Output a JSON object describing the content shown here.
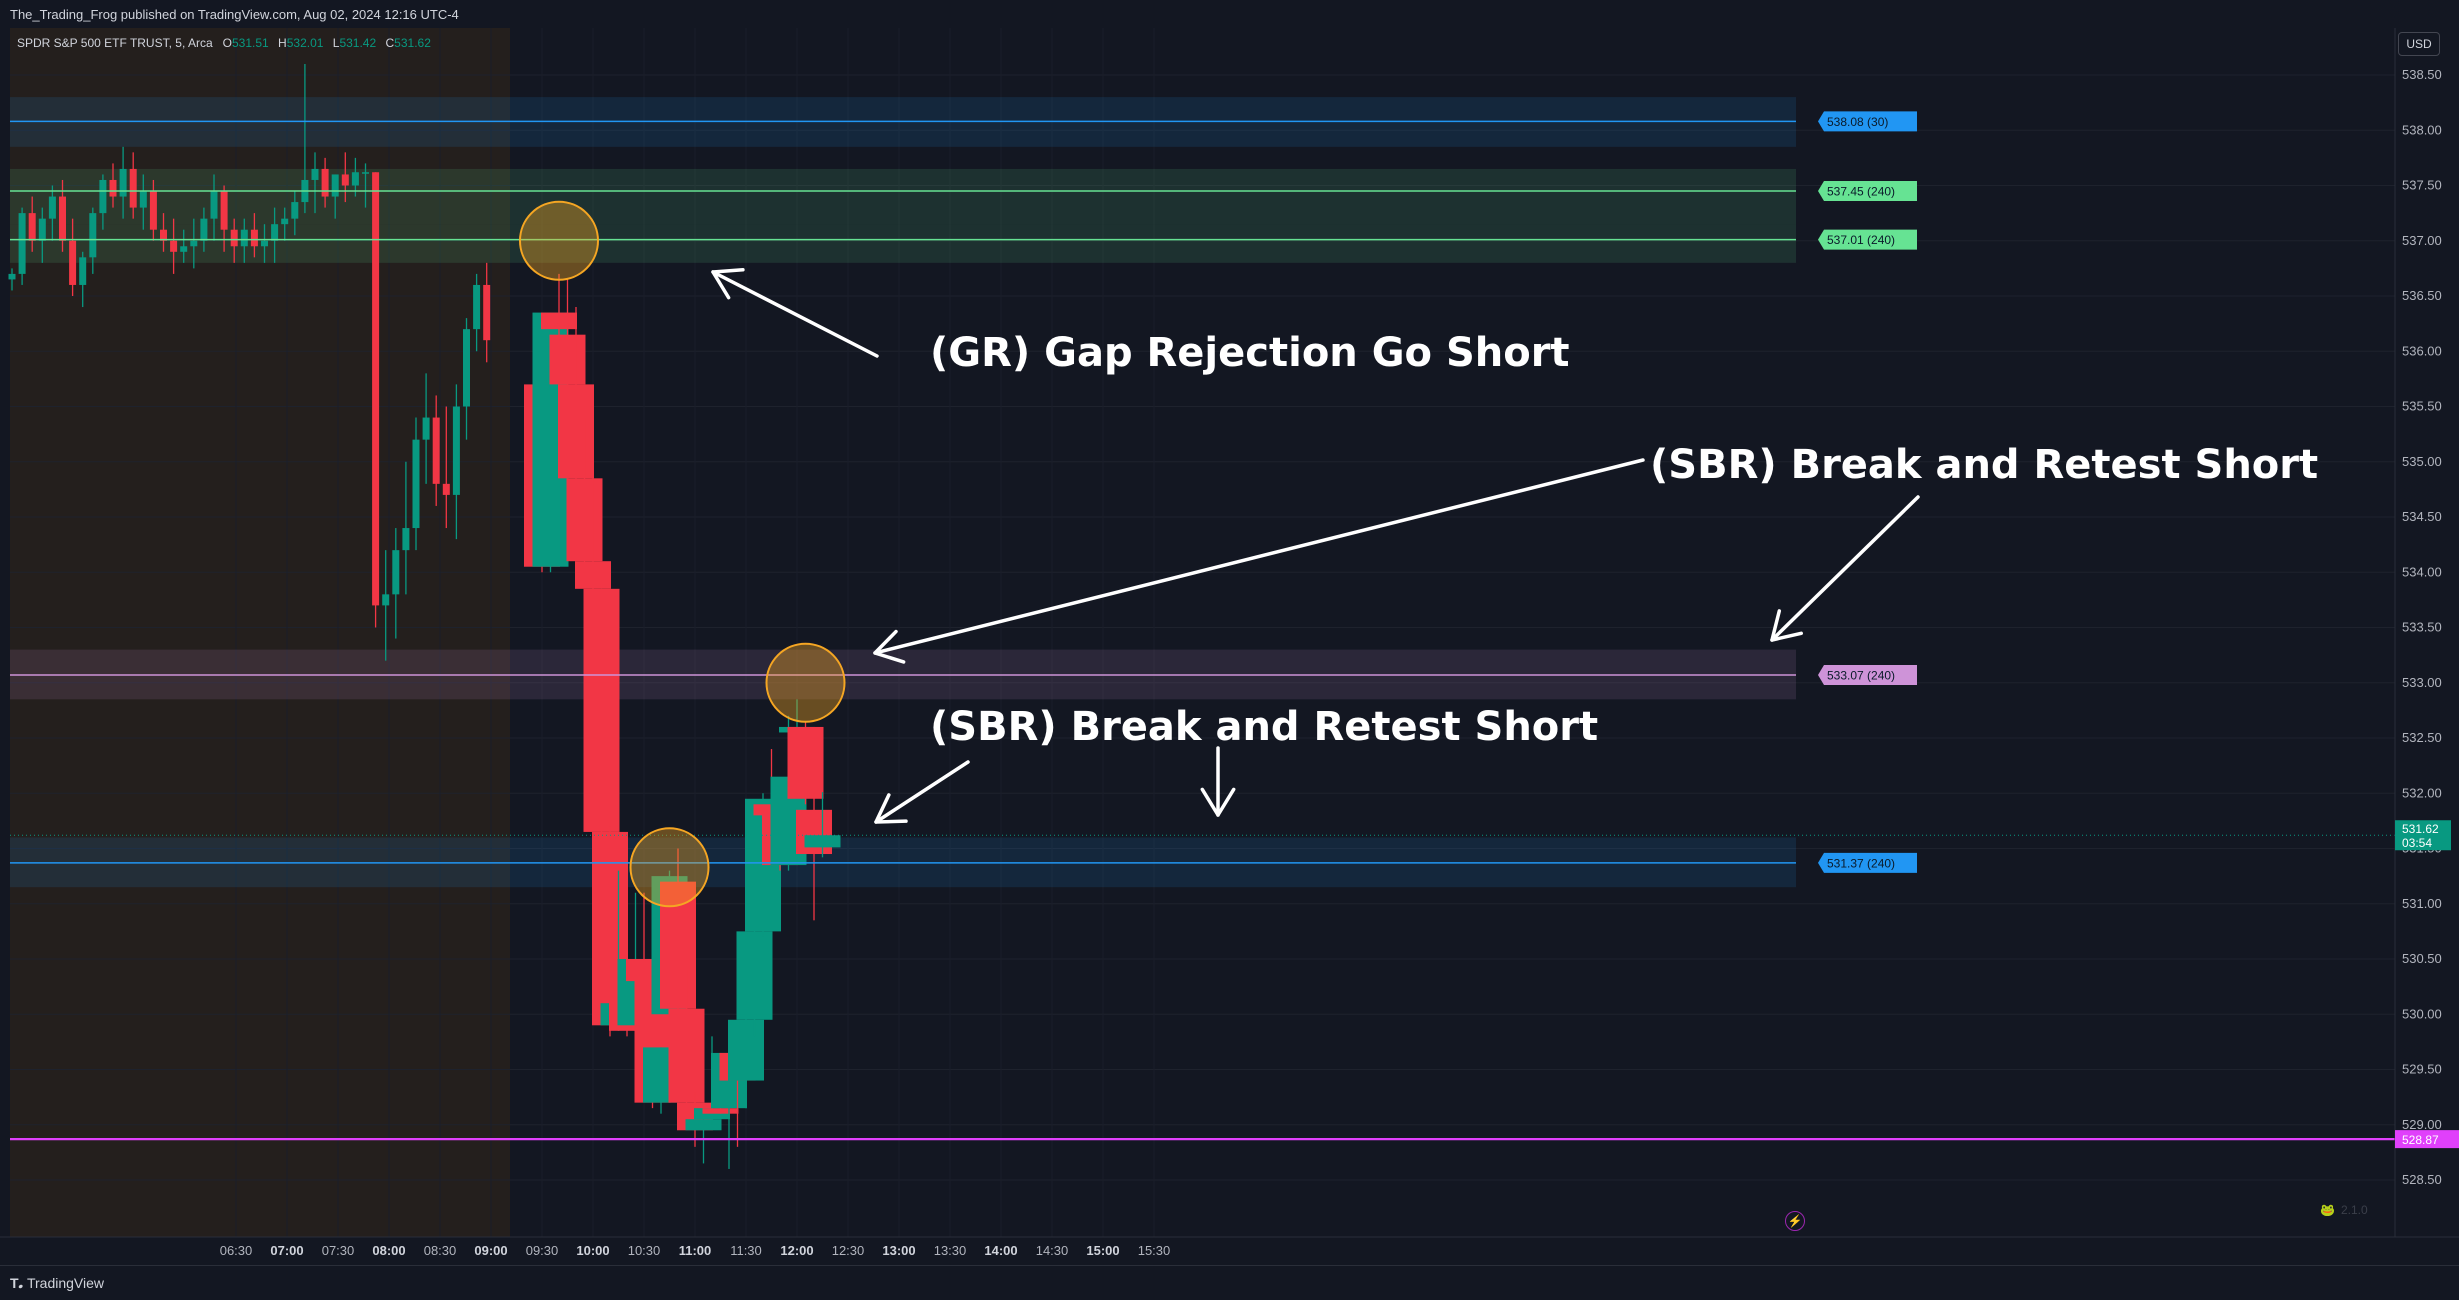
{
  "header": {
    "published_line": "The_Trading_Frog published on TradingView.com, Aug 02, 2024 12:16 UTC-4"
  },
  "symbol": {
    "name": "SPDR S&P 500 ETF TRUST, 5, Arca",
    "open_label": "O",
    "open": "531.51",
    "high_label": "H",
    "high": "532.01",
    "low_label": "L",
    "low": "531.42",
    "close_label": "C",
    "close": "531.62"
  },
  "currency": "USD",
  "footer": {
    "brand": "TradingView",
    "version": "2.1.0"
  },
  "colors": {
    "background": "#131722",
    "up": "#089981",
    "down": "#f23645",
    "blue_level": "#2196f3",
    "green_level": "#66e393",
    "violet_level": "#ce93d8",
    "magenta_level": "#e040fb",
    "premarket": "#251f1c",
    "circle": "#f5a623"
  },
  "chart_data": {
    "type": "candlestick",
    "title": "SPDR S&P 500 ETF TRUST, 5, Arca",
    "ylim": [
      528.15,
      538.85
    ],
    "y_ticks": [
      "538.50",
      "538.00",
      "537.50",
      "537.00",
      "536.50",
      "536.00",
      "535.50",
      "535.00",
      "534.50",
      "534.00",
      "533.50",
      "533.00",
      "532.50",
      "532.00",
      "531.50",
      "531.00",
      "530.50",
      "530.00",
      "529.50",
      "529.00",
      "528.50"
    ],
    "x_ticks": [
      {
        "label": "06:30",
        "bold": false
      },
      {
        "label": "07:00",
        "bold": true
      },
      {
        "label": "07:30",
        "bold": false
      },
      {
        "label": "08:00",
        "bold": true
      },
      {
        "label": "08:30",
        "bold": false
      },
      {
        "label": "09:00",
        "bold": true
      },
      {
        "label": "09:30",
        "bold": false
      },
      {
        "label": "10:00",
        "bold": true
      },
      {
        "label": "10:30",
        "bold": false
      },
      {
        "label": "11:00",
        "bold": true
      },
      {
        "label": "11:30",
        "bold": false
      },
      {
        "label": "12:00",
        "bold": true
      },
      {
        "label": "12:30",
        "bold": false
      },
      {
        "label": "13:00",
        "bold": true
      },
      {
        "label": "13:30",
        "bold": false
      },
      {
        "label": "14:00",
        "bold": true
      },
      {
        "label": "14:30",
        "bold": false
      },
      {
        "label": "15:00",
        "bold": true
      },
      {
        "label": "15:30",
        "bold": false
      }
    ],
    "premarket_candles": [
      [
        536.65,
        536.75,
        536.55,
        536.7
      ],
      [
        536.7,
        537.3,
        536.6,
        537.25
      ],
      [
        537.25,
        537.4,
        536.9,
        537.0
      ],
      [
        537.0,
        537.3,
        536.8,
        537.2
      ],
      [
        537.2,
        537.5,
        537.0,
        537.4
      ],
      [
        537.4,
        537.55,
        536.9,
        537.0
      ],
      [
        537.0,
        537.2,
        536.5,
        536.6
      ],
      [
        536.6,
        536.9,
        536.4,
        536.85
      ],
      [
        536.85,
        537.3,
        536.7,
        537.25
      ],
      [
        537.25,
        537.6,
        537.1,
        537.55
      ],
      [
        537.55,
        537.7,
        537.3,
        537.4
      ],
      [
        537.4,
        537.85,
        537.2,
        537.65
      ],
      [
        537.65,
        537.8,
        537.2,
        537.3
      ],
      [
        537.3,
        537.6,
        537.1,
        537.45
      ],
      [
        537.45,
        537.55,
        537.0,
        537.1
      ],
      [
        537.1,
        537.25,
        536.9,
        537.0
      ],
      [
        537.0,
        537.2,
        536.7,
        536.9
      ],
      [
        536.9,
        537.1,
        536.8,
        536.95
      ],
      [
        536.95,
        537.2,
        536.75,
        537.0
      ],
      [
        537.0,
        537.3,
        536.9,
        537.2
      ],
      [
        537.2,
        537.6,
        537.0,
        537.45
      ],
      [
        537.45,
        537.5,
        536.9,
        537.1
      ],
      [
        537.1,
        537.2,
        536.8,
        536.95
      ],
      [
        536.95,
        537.2,
        536.8,
        537.1
      ],
      [
        537.1,
        537.25,
        536.85,
        536.95
      ],
      [
        536.95,
        537.15,
        536.8,
        537.0
      ],
      [
        537.0,
        537.3,
        536.8,
        537.15
      ],
      [
        537.15,
        537.3,
        537.0,
        537.2
      ],
      [
        537.2,
        537.45,
        537.05,
        537.35
      ],
      [
        537.35,
        538.6,
        537.25,
        537.55
      ],
      [
        537.55,
        537.8,
        537.25,
        537.65
      ],
      [
        537.65,
        537.75,
        537.3,
        537.4
      ],
      [
        537.4,
        537.6,
        537.2,
        537.6
      ],
      [
        537.6,
        537.8,
        537.35,
        537.5
      ],
      [
        537.5,
        537.75,
        537.4,
        537.62
      ],
      [
        537.62,
        537.7,
        537.3,
        537.62
      ],
      [
        537.62,
        537.62,
        533.5,
        533.7
      ],
      [
        533.7,
        534.2,
        533.2,
        533.8
      ],
      [
        533.8,
        534.4,
        533.4,
        534.2
      ],
      [
        534.2,
        535.0,
        533.8,
        534.4
      ],
      [
        534.4,
        535.4,
        534.2,
        535.2
      ],
      [
        535.2,
        535.8,
        534.8,
        535.4
      ],
      [
        535.4,
        535.6,
        534.6,
        534.8
      ],
      [
        534.8,
        535.5,
        534.4,
        534.7
      ],
      [
        534.7,
        535.7,
        534.3,
        535.5
      ],
      [
        535.5,
        536.3,
        535.2,
        536.2
      ],
      [
        536.2,
        536.7,
        536.0,
        536.6
      ],
      [
        536.6,
        536.8,
        535.9,
        536.1
      ]
    ],
    "candles": [
      {
        "time": "09:30",
        "open": 535.7,
        "high": 535.8,
        "low": 534.0,
        "close": 534.05
      },
      {
        "time": "09:35",
        "open": 534.05,
        "high": 536.35,
        "low": 534.0,
        "close": 536.35
      },
      {
        "time": "09:40",
        "open": 536.35,
        "high": 536.7,
        "low": 536.05,
        "close": 536.2
      },
      {
        "time": "09:45",
        "open": 536.15,
        "high": 536.65,
        "low": 535.1,
        "close": 535.7
      },
      {
        "time": "09:50",
        "open": 535.7,
        "high": 536.4,
        "low": 534.65,
        "close": 534.85
      },
      {
        "time": "09:55",
        "open": 534.85,
        "high": 535.4,
        "low": 533.95,
        "close": 534.1
      },
      {
        "time": "10:00",
        "open": 534.1,
        "high": 535.0,
        "low": 533.8,
        "close": 533.85
      },
      {
        "time": "10:05",
        "open": 533.85,
        "high": 533.85,
        "low": 531.15,
        "close": 531.65
      },
      {
        "time": "10:10",
        "open": 531.65,
        "high": 531.7,
        "low": 529.8,
        "close": 529.9
      },
      {
        "time": "10:15",
        "open": 529.9,
        "high": 531.3,
        "low": 529.85,
        "close": 530.1
      },
      {
        "time": "10:20",
        "open": 530.15,
        "high": 530.25,
        "low": 529.8,
        "close": 529.85
      },
      {
        "time": "10:25",
        "open": 529.9,
        "high": 531.1,
        "low": 529.85,
        "close": 530.5
      },
      {
        "time": "10:30",
        "open": 530.5,
        "high": 531.1,
        "low": 530.2,
        "close": 530.3
      },
      {
        "time": "10:35",
        "open": 530.35,
        "high": 530.5,
        "low": 529.15,
        "close": 529.2
      },
      {
        "time": "10:40",
        "open": 529.2,
        "high": 529.7,
        "low": 529.1,
        "close": 529.7
      },
      {
        "time": "10:45",
        "open": 530.0,
        "high": 531.3,
        "low": 529.9,
        "close": 531.25
      },
      {
        "time": "10:50",
        "open": 531.2,
        "high": 531.5,
        "low": 529.95,
        "close": 530.05
      },
      {
        "time": "10:55",
        "open": 530.05,
        "high": 530.4,
        "low": 529.0,
        "close": 529.2
      },
      {
        "time": "11:00",
        "open": 529.2,
        "high": 529.3,
        "low": 528.8,
        "close": 528.95
      },
      {
        "time": "11:05",
        "open": 528.95,
        "high": 529.1,
        "low": 528.65,
        "close": 529.05
      },
      {
        "time": "11:10",
        "open": 529.05,
        "high": 529.8,
        "low": 529.0,
        "close": 529.15
      },
      {
        "time": "11:15",
        "open": 529.15,
        "high": 529.2,
        "low": 529.1,
        "close": 529.1
      },
      {
        "time": "11:20",
        "open": 529.15,
        "high": 529.75,
        "low": 528.6,
        "close": 529.65
      },
      {
        "time": "11:25",
        "open": 529.65,
        "high": 529.9,
        "low": 528.8,
        "close": 529.4
      },
      {
        "time": "11:30",
        "open": 529.4,
        "high": 530.0,
        "low": 529.15,
        "close": 529.95
      },
      {
        "time": "11:35",
        "open": 529.95,
        "high": 531.0,
        "low": 529.8,
        "close": 530.75
      },
      {
        "time": "11:40",
        "open": 530.75,
        "high": 532.0,
        "low": 530.7,
        "close": 531.95
      },
      {
        "time": "11:45",
        "open": 531.9,
        "high": 532.4,
        "low": 531.5,
        "close": 531.8
      },
      {
        "time": "11:50",
        "open": 531.85,
        "high": 531.95,
        "low": 531.3,
        "close": 531.35
      },
      {
        "time": "11:55",
        "open": 531.35,
        "high": 532.7,
        "low": 531.3,
        "close": 532.15
      },
      {
        "time": "12:00",
        "open": 532.55,
        "high": 532.85,
        "low": 532.15,
        "close": 532.6
      },
      {
        "time": "12:05",
        "open": 532.6,
        "high": 532.65,
        "low": 531.9,
        "close": 531.95
      },
      {
        "time": "12:10",
        "open": 531.85,
        "high": 532.0,
        "low": 530.85,
        "close": 531.45
      },
      {
        "time": "12:15",
        "open": 531.51,
        "high": 532.01,
        "low": 531.42,
        "close": 531.62
      }
    ],
    "levels": [
      {
        "value": 538.08,
        "label": "538.08 (30)",
        "color": "#2196f3",
        "zone": [
          537.85,
          538.3
        ]
      },
      {
        "value": 537.45,
        "label": "537.45 (240)",
        "color": "#66e393",
        "zone": [
          537.15,
          537.65
        ]
      },
      {
        "value": 537.01,
        "label": "537.01 (240)",
        "color": "#66e393",
        "zone": [
          536.8,
          537.15
        ]
      },
      {
        "value": 533.07,
        "label": "533.07 (240)",
        "color": "#ce93d8",
        "zone": [
          532.85,
          533.3
        ]
      },
      {
        "value": 531.37,
        "label": "531.37 (240)",
        "color": "#2196f3",
        "zone": [
          531.15,
          531.6
        ]
      },
      {
        "value": 528.87,
        "label": "528.87",
        "color": "#e040fb",
        "zone": null
      }
    ],
    "last_price": {
      "label": "531.62",
      "countdown": "03:54",
      "value": 531.62
    },
    "annotations": [
      {
        "text": "(GR) Gap Rejection Go Short"
      },
      {
        "text": "(SBR) Break and Retest Short"
      },
      {
        "text": "(SBR) Break and Retest Short"
      }
    ],
    "circle_marks": [
      {
        "time": "09:40",
        "price": 537.0
      },
      {
        "time": "10:45",
        "price": 531.33
      },
      {
        "time": "12:05",
        "price": 533.0
      }
    ]
  }
}
